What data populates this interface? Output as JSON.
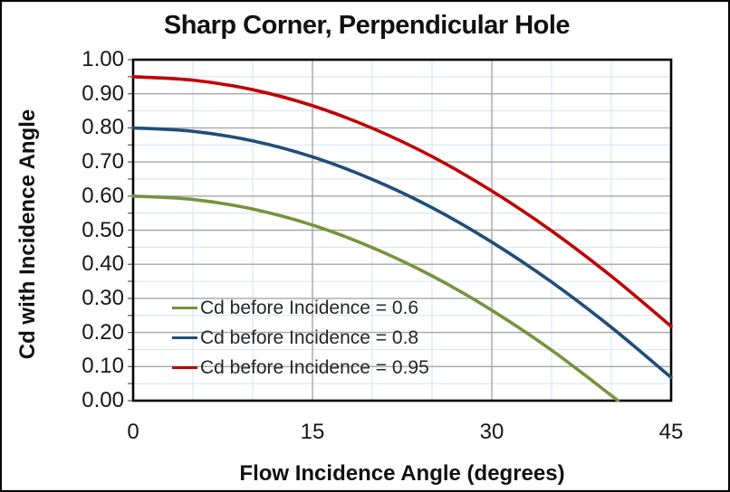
{
  "window": {
    "background_color": "#ffffff",
    "outer_border_color": "#000000"
  },
  "chart_data": {
    "type": "line",
    "title": "Sharp Corner, Perpendicular Hole",
    "xlabel": "Flow Incidence Angle (degrees)",
    "ylabel": "Cd with Incidence Angle",
    "xlim": [
      0,
      45
    ],
    "ylim": [
      0,
      1
    ],
    "x_major_tick_values": [
      0,
      15,
      30,
      45
    ],
    "x_tick_labels": [
      "0",
      "15",
      "30",
      "45"
    ],
    "y_major_tick_values": [
      1.0,
      0.9,
      0.8,
      0.7,
      0.6,
      0.5,
      0.4,
      0.3,
      0.2,
      0.1,
      0.0
    ],
    "y_tick_labels": [
      "1.00",
      "0.90",
      "0.80",
      "0.70",
      "0.60",
      "0.50",
      "0.40",
      "0.30",
      "0.20",
      "0.10",
      "0.00"
    ],
    "x_minor_step": 5,
    "y_minor_step": 0.05,
    "grid": {
      "major_color": "#a6a6a6",
      "minor_color": "#dde7f3",
      "axis_tick_color": "#595959",
      "plot_border_color": "#000000"
    },
    "legend_position": "inside-lower-left",
    "series": [
      {
        "name": "Cd before Incidence = 0.6",
        "color": "#77933C",
        "points": [
          [
            0,
            0.6
          ],
          [
            5,
            0.59
          ],
          [
            10,
            0.562
          ],
          [
            15,
            0.515
          ],
          [
            20,
            0.449
          ],
          [
            25,
            0.366
          ],
          [
            30,
            0.265
          ],
          [
            35,
            0.148
          ],
          [
            40,
            0.015
          ],
          [
            40.5,
            0.0
          ]
        ]
      },
      {
        "name": "Cd before Incidence = 0.8",
        "color": "#1F4E7B",
        "points": [
          [
            0,
            0.8
          ],
          [
            5,
            0.79
          ],
          [
            10,
            0.762
          ],
          [
            15,
            0.715
          ],
          [
            20,
            0.649
          ],
          [
            25,
            0.566
          ],
          [
            30,
            0.465
          ],
          [
            35,
            0.348
          ],
          [
            40,
            0.215
          ],
          [
            45,
            0.068
          ]
        ]
      },
      {
        "name": "Cd before Incidence = 0.95",
        "color": "#C00000",
        "points": [
          [
            0,
            0.95
          ],
          [
            5,
            0.94
          ],
          [
            10,
            0.912
          ],
          [
            15,
            0.865
          ],
          [
            20,
            0.799
          ],
          [
            25,
            0.716
          ],
          [
            30,
            0.615
          ],
          [
            35,
            0.498
          ],
          [
            40,
            0.365
          ],
          [
            45,
            0.218
          ]
        ]
      }
    ]
  }
}
